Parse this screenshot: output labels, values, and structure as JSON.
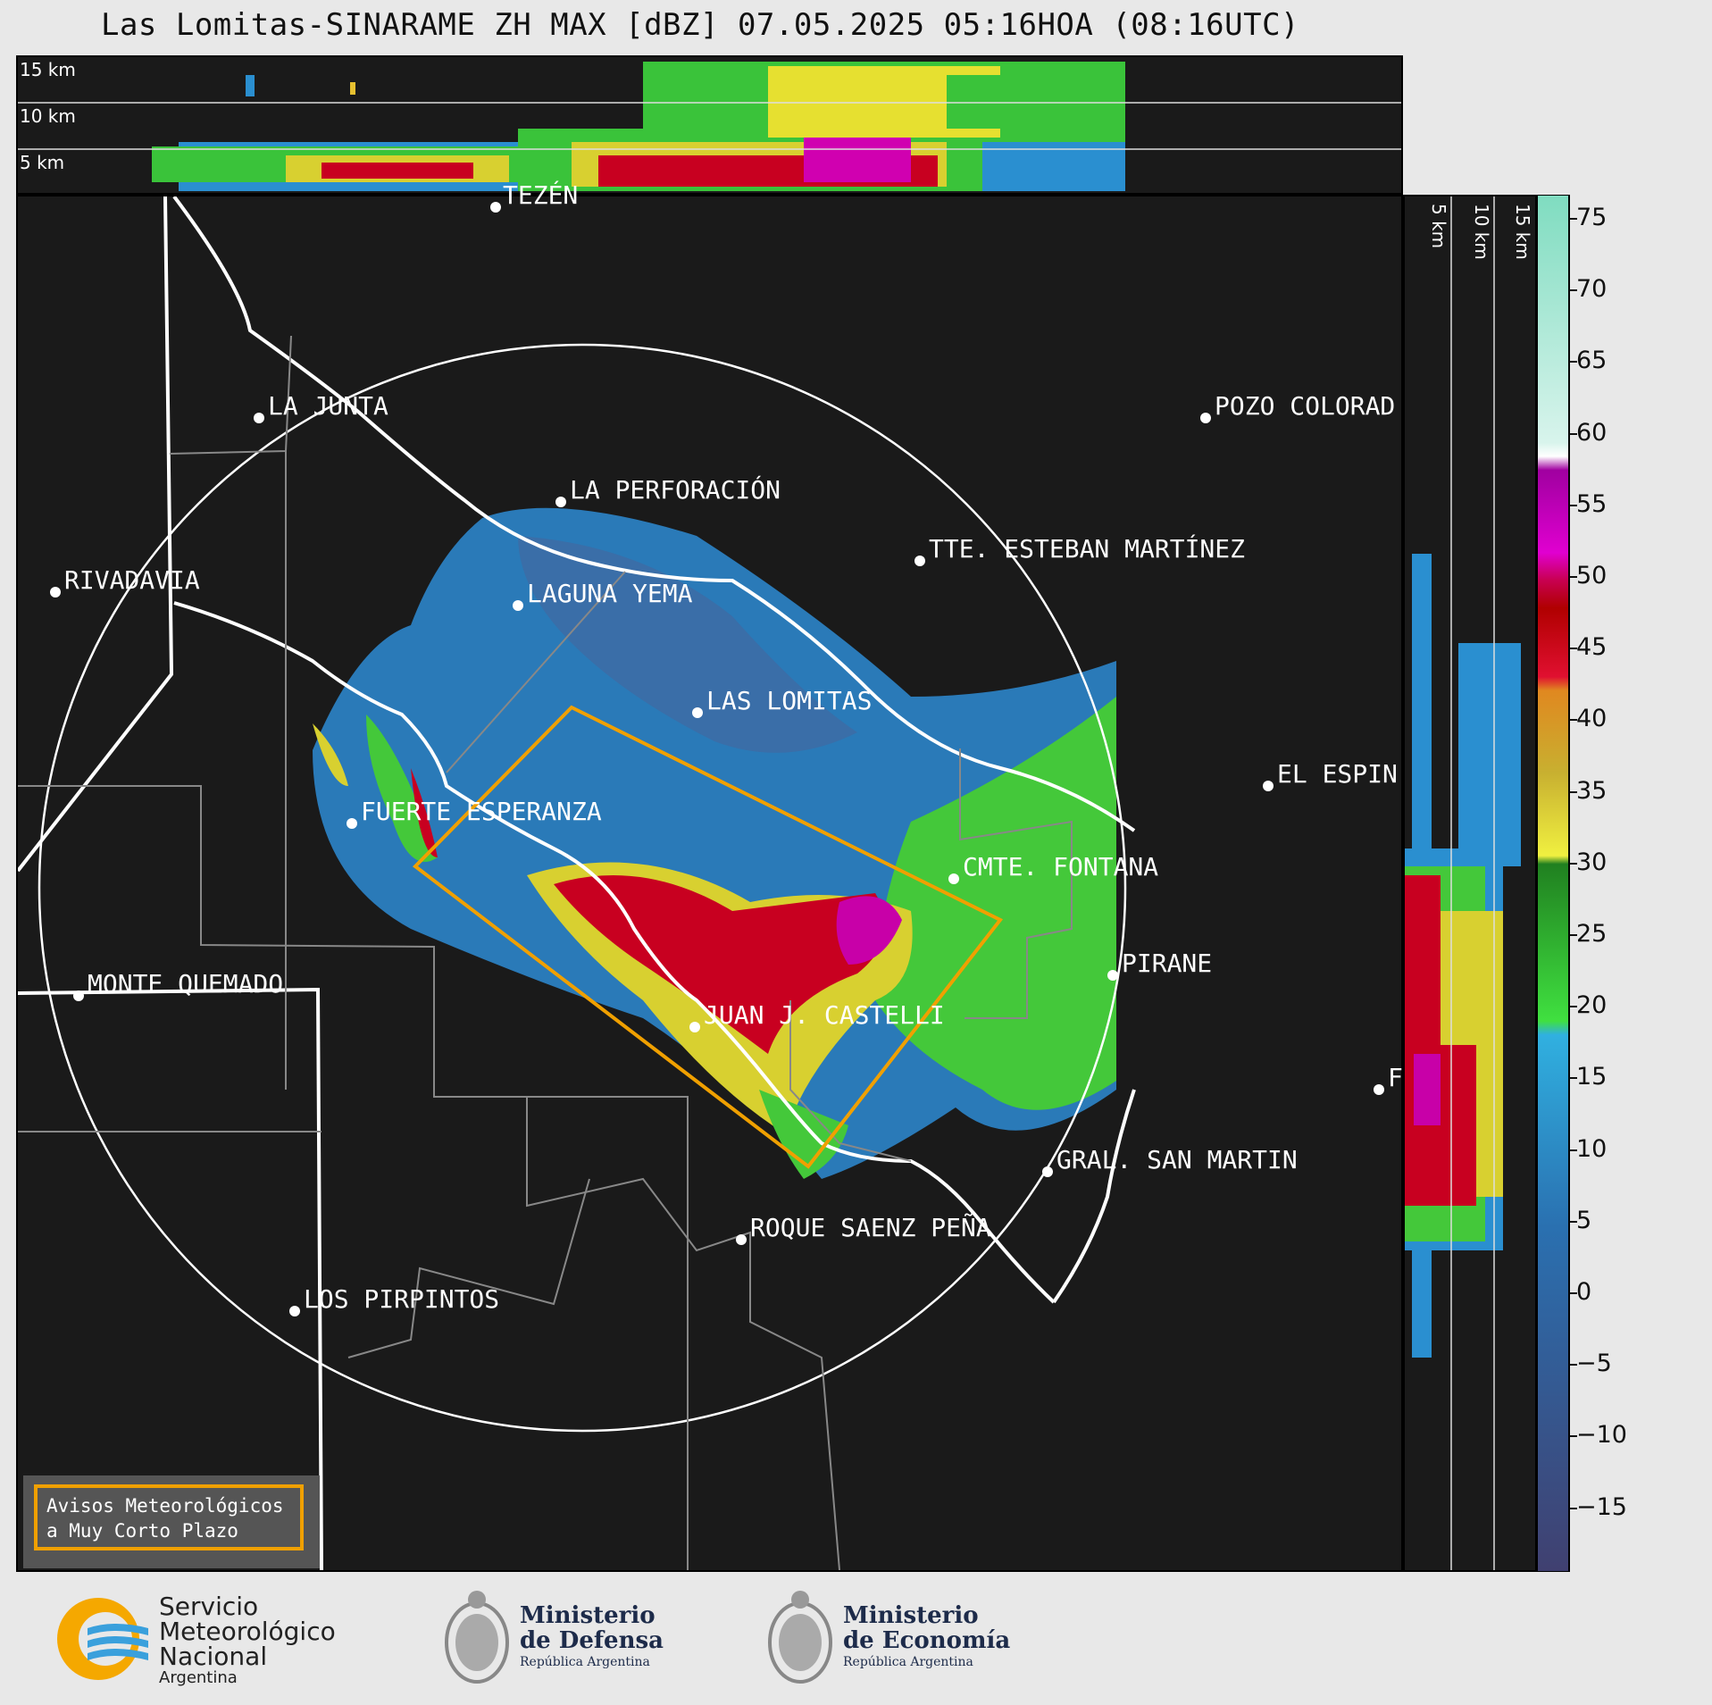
{
  "title": "Las Lomitas-SINARAME ZH MAX [dBZ] 07.05.2025 05:16HOA (08:16UTC)",
  "top_altitudes": [
    "15 km",
    "10 km",
    "5 km"
  ],
  "side_altitudes": [
    "5 km",
    "10 km",
    "15 km"
  ],
  "colorbar": {
    "ticks": [
      "75",
      "70",
      "65",
      "60",
      "55",
      "50",
      "45",
      "40",
      "35",
      "30",
      "25",
      "20",
      "15",
      "10",
      "5",
      "0",
      "−5",
      "−10",
      "−15"
    ]
  },
  "cities": [
    {
      "name": "TEZÉN"
    },
    {
      "name": "LA JUNTA"
    },
    {
      "name": "POZO COLORAD"
    },
    {
      "name": "LA PERFORACIÓN"
    },
    {
      "name": "TTE. ESTEBAN MARTÍNEZ"
    },
    {
      "name": "RIVADAVIA"
    },
    {
      "name": "LAGUNA YEMA"
    },
    {
      "name": "LAS LOMITAS"
    },
    {
      "name": "EL ESPIN"
    },
    {
      "name": "FUERTE ESPERANZA"
    },
    {
      "name": "CMTE. FONTANA"
    },
    {
      "name": "PIRANE"
    },
    {
      "name": "MONTE QUEMADO"
    },
    {
      "name": "JUAN J. CASTELLI"
    },
    {
      "name": "LOS PIRPINTOS"
    },
    {
      "name": "GRAL. SAN MARTIN"
    },
    {
      "name": "ROQUE SAENZ PEÑA"
    },
    {
      "name": "FO"
    }
  ],
  "avisos": {
    "line1": "Avisos Meteorológicos",
    "line2": "a Muy Corto Plazo"
  },
  "logos": {
    "smn": {
      "l1": "Servicio",
      "l2": "Meteorológico",
      "l3": "Nacional",
      "l4": "Argentina"
    },
    "defensa": {
      "l1": "Ministerio",
      "l2": "de Defensa",
      "l3": "República Argentina"
    },
    "economia": {
      "l1": "Ministerio",
      "l2": "de Economía",
      "l3": "República Argentina"
    }
  }
}
